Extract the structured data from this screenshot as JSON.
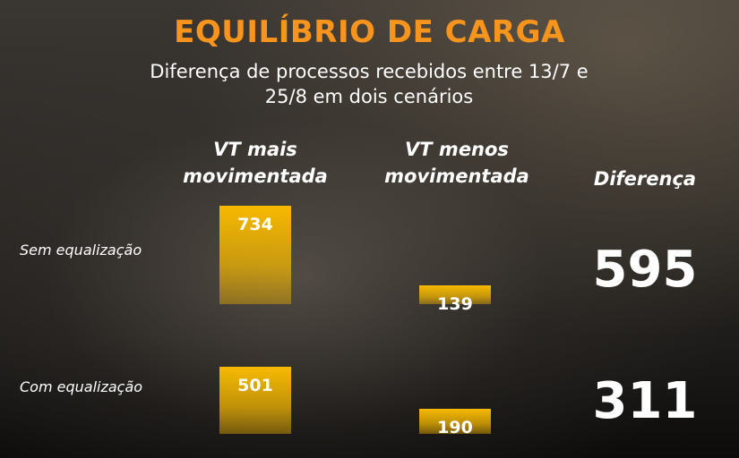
{
  "chart_data": {
    "type": "bar",
    "title": "EQUILÍBRIO DE CARGA",
    "subtitle": "Diferença de processos recebidos entre 13/7 e 25/8 em dois cenários",
    "categories": [
      "Sem equalização",
      "Com equalização"
    ],
    "series": [
      {
        "name": "VT mais movimentada",
        "color": "#f7b900",
        "values": [
          734,
          501
        ]
      },
      {
        "name": "VT menos movimentada",
        "color": "#f7b900",
        "values": [
          139,
          190
        ]
      }
    ],
    "difference": {
      "name": "Diferença",
      "values": [
        595,
        311
      ]
    }
  }
}
